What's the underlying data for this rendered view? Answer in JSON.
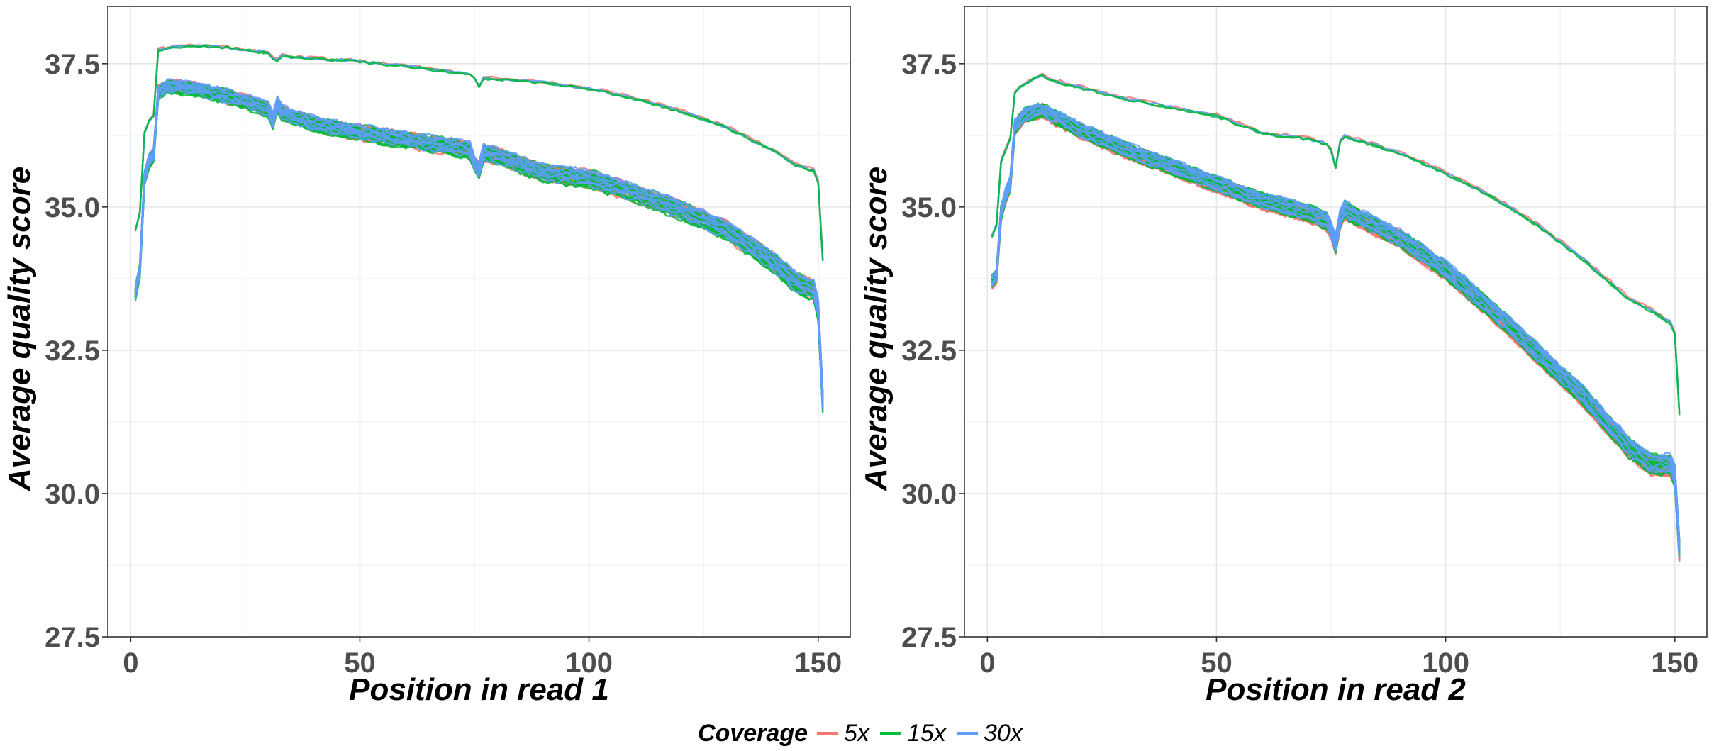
{
  "chart_data": [
    {
      "type": "line",
      "xlabel": "Position in read 1",
      "ylabel": "Average quality score",
      "xlim": [
        -5,
        157
      ],
      "ylim": [
        27.5,
        38.5
      ],
      "xticks": [
        0,
        50,
        100,
        150
      ],
      "yticks": [
        27.5,
        30.0,
        32.5,
        35.0,
        37.5
      ],
      "xtick_labels": [
        "0",
        "50",
        "100",
        "150"
      ],
      "ytick_labels": [
        "27.5",
        "30.0",
        "32.5",
        "35.0",
        "37.5"
      ],
      "grid": true,
      "upper_band": {
        "x": [
          1,
          2,
          3,
          4,
          5,
          6,
          7,
          8,
          10,
          15,
          20,
          25,
          30,
          31,
          32,
          33,
          35,
          40,
          50,
          60,
          70,
          74,
          75,
          76,
          77,
          80,
          90,
          100,
          110,
          120,
          130,
          140,
          145,
          149,
          150,
          151
        ],
        "y": [
          34.6,
          34.9,
          36.3,
          36.5,
          36.6,
          37.75,
          37.77,
          37.78,
          37.8,
          37.82,
          37.8,
          37.75,
          37.7,
          37.6,
          37.55,
          37.65,
          37.63,
          37.6,
          37.55,
          37.47,
          37.36,
          37.32,
          37.25,
          37.1,
          37.26,
          37.24,
          37.18,
          37.08,
          36.9,
          36.68,
          36.4,
          36.0,
          35.75,
          35.65,
          35.45,
          34.1
        ]
      },
      "lower_band": {
        "x": [
          1,
          2,
          3,
          4,
          5,
          6,
          7,
          8,
          10,
          15,
          20,
          25,
          30,
          31,
          32,
          33,
          35,
          40,
          50,
          60,
          70,
          74,
          75,
          76,
          77,
          80,
          90,
          100,
          110,
          120,
          130,
          140,
          145,
          149,
          150,
          151
        ],
        "y": [
          33.5,
          33.9,
          35.5,
          35.8,
          35.9,
          37.0,
          37.05,
          37.1,
          37.1,
          37.05,
          36.95,
          36.85,
          36.7,
          36.5,
          36.8,
          36.65,
          36.6,
          36.45,
          36.3,
          36.18,
          36.05,
          36.0,
          35.75,
          35.65,
          35.95,
          35.9,
          35.6,
          35.5,
          35.25,
          34.95,
          34.6,
          34.05,
          33.7,
          33.55,
          33.2,
          31.6
        ]
      },
      "upper_series_count": 4,
      "lower_series_count": 60
    },
    {
      "type": "line",
      "xlabel": "Position in read 2",
      "ylabel": "Average quality score",
      "xlim": [
        -5,
        157
      ],
      "ylim": [
        27.5,
        38.5
      ],
      "xticks": [
        0,
        50,
        100,
        150
      ],
      "yticks": [
        27.5,
        30.0,
        32.5,
        35.0,
        37.5
      ],
      "xtick_labels": [
        "0",
        "50",
        "100",
        "150"
      ],
      "ytick_labels": [
        "27.5",
        "30.0",
        "32.5",
        "35.0",
        "37.5"
      ],
      "grid": true,
      "upper_band": {
        "x": [
          1,
          2,
          3,
          4,
          5,
          6,
          7,
          8,
          10,
          12,
          15,
          20,
          30,
          40,
          50,
          60,
          70,
          74,
          75,
          76,
          77,
          78,
          80,
          90,
          100,
          110,
          120,
          130,
          140,
          145,
          149,
          150,
          151
        ],
        "y": [
          34.5,
          34.7,
          35.8,
          36.0,
          36.2,
          37.0,
          37.1,
          37.15,
          37.25,
          37.3,
          37.2,
          37.1,
          36.9,
          36.75,
          36.6,
          36.3,
          36.2,
          36.1,
          36.0,
          35.7,
          36.15,
          36.25,
          36.2,
          35.95,
          35.6,
          35.2,
          34.7,
          34.1,
          33.4,
          33.2,
          33.0,
          32.8,
          31.4
        ]
      },
      "lower_band": {
        "x": [
          1,
          2,
          3,
          4,
          5,
          6,
          7,
          8,
          10,
          12,
          15,
          20,
          30,
          40,
          50,
          60,
          70,
          74,
          75,
          76,
          77,
          78,
          80,
          90,
          100,
          110,
          120,
          130,
          140,
          145,
          149,
          150,
          151
        ],
        "y": [
          33.7,
          33.8,
          34.9,
          35.2,
          35.4,
          36.4,
          36.5,
          36.6,
          36.65,
          36.7,
          36.55,
          36.35,
          36.0,
          35.7,
          35.4,
          35.1,
          34.9,
          34.75,
          34.6,
          34.35,
          34.8,
          34.95,
          34.85,
          34.45,
          33.9,
          33.2,
          32.45,
          31.7,
          30.8,
          30.5,
          30.5,
          30.3,
          29.0
        ]
      },
      "upper_series_count": 4,
      "lower_series_count": 60
    }
  ],
  "legend": {
    "title": "Coverage",
    "placement": "bottom",
    "items": [
      {
        "label": "5x",
        "color": "#f8766d"
      },
      {
        "label": "15x",
        "color": "#00ba38"
      },
      {
        "label": "30x",
        "color": "#619cff"
      }
    ]
  }
}
